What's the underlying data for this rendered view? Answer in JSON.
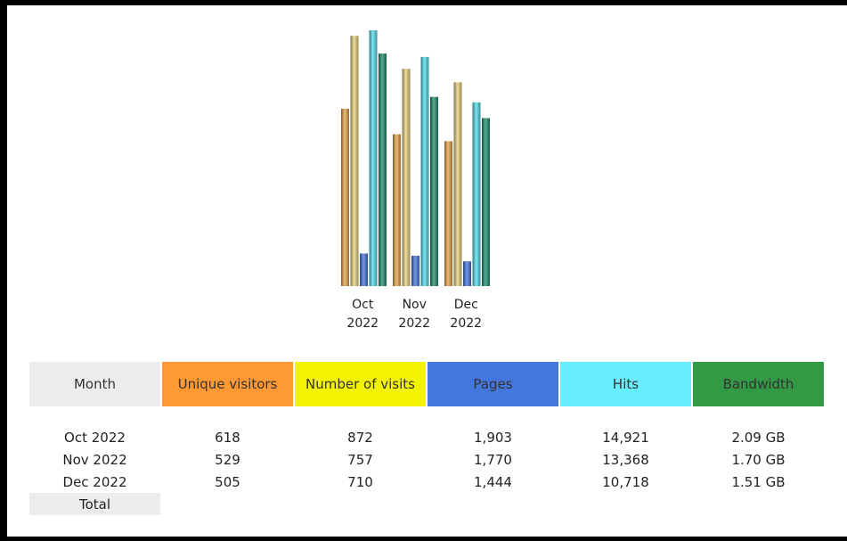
{
  "chart_data": {
    "type": "bar",
    "categories": [
      "Oct 2022",
      "Nov 2022",
      "Dec 2022"
    ],
    "category_lines": [
      [
        "Oct",
        "2022"
      ],
      [
        "Nov",
        "2022"
      ],
      [
        "Dec",
        "2022"
      ]
    ],
    "series": [
      {
        "name": "Unique visitors",
        "values": [
          618,
          529,
          505
        ],
        "color": "#e8a44a"
      },
      {
        "name": "Number of visits",
        "values": [
          872,
          757,
          710
        ],
        "color": "#e8d480"
      },
      {
        "name": "Pages",
        "values": [
          1903,
          1770,
          1444
        ],
        "color": "#4477dd"
      },
      {
        "name": "Hits",
        "values": [
          14921,
          13368,
          10718
        ],
        "color": "#55ddee"
      },
      {
        "name": "Bandwidth",
        "values": [
          2.09,
          1.7,
          1.51
        ],
        "unit": "GB",
        "color": "#1f8f6e"
      }
    ],
    "title": "",
    "xlabel": "",
    "ylabel": "",
    "grid": false,
    "legend": "none"
  },
  "table": {
    "headers": [
      "Month",
      "Unique visitors",
      "Number of visits",
      "Pages",
      "Hits",
      "Bandwidth"
    ],
    "rows": [
      [
        "Oct 2022",
        "618",
        "872",
        "1,903",
        "14,921",
        "2.09 GB"
      ],
      [
        "Nov 2022",
        "529",
        "757",
        "1,770",
        "13,368",
        "1.70 GB"
      ],
      [
        "Dec 2022",
        "505",
        "710",
        "1,444",
        "10,718",
        "1.51 GB"
      ]
    ],
    "total_label": "Total"
  }
}
